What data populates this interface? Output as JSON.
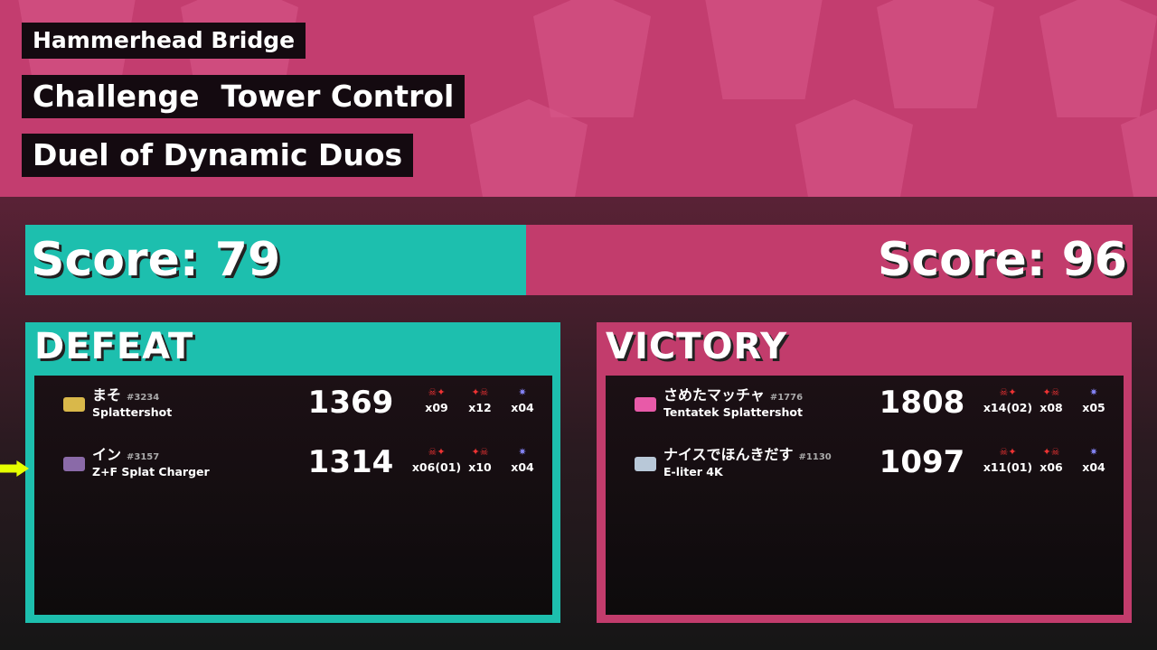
{
  "stage": "Hammerhead Bridge",
  "mode": {
    "type": "Challenge",
    "rule": "Tower Control"
  },
  "event": "Duel of Dynamic Duos",
  "colors": {
    "alpha": "#1dbfae",
    "bravo": "#c23c6c"
  },
  "teams": [
    {
      "score_label": "Score:  79",
      "result": "DEFEAT",
      "players": [
        {
          "name": "まそ",
          "tag": "#3234",
          "weapon": "Splattershot",
          "points": "1369",
          "kills": "x09",
          "assists": "x12",
          "specials": "x04",
          "self": false
        },
        {
          "name": "イン",
          "tag": "#3157",
          "weapon": "Z+F Splat Charger",
          "points": "1314",
          "kills": "x06(01)",
          "assists": "x10",
          "specials": "x04",
          "self": true
        }
      ]
    },
    {
      "score_label": "Score:  96",
      "result": "VICTORY",
      "players": [
        {
          "name": "さめたマッチャ",
          "tag": "#1776",
          "weapon": "Tentatek Splattershot",
          "points": "1808",
          "kills": "x14(02)",
          "assists": "x08",
          "specials": "x05",
          "self": false
        },
        {
          "name": "ナイスでほんきだす",
          "tag": "#1130",
          "weapon": "E-liter 4K",
          "points": "1097",
          "kills": "x11(01)",
          "assists": "x06",
          "specials": "x04",
          "self": false
        }
      ]
    }
  ]
}
